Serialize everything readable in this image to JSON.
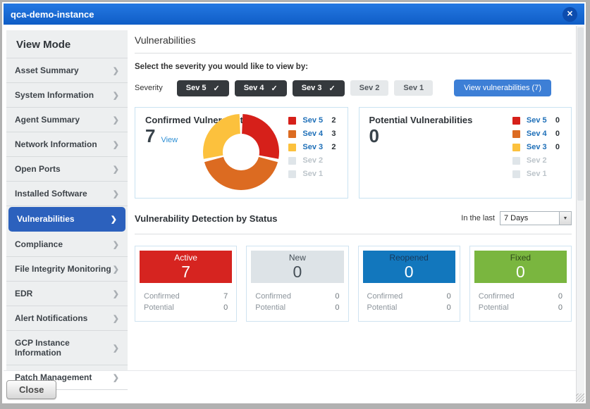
{
  "window": {
    "title": "qca-demo-instance",
    "close_icon": "✕"
  },
  "sidebar": {
    "header": "View Mode",
    "items": [
      {
        "label": "Asset Summary",
        "selected": false
      },
      {
        "label": "System Information",
        "selected": false
      },
      {
        "label": "Agent Summary",
        "selected": false
      },
      {
        "label": "Network Information",
        "selected": false
      },
      {
        "label": "Open Ports",
        "selected": false
      },
      {
        "label": "Installed Software",
        "selected": false
      },
      {
        "label": "Vulnerabilities",
        "selected": true
      },
      {
        "label": "Compliance",
        "selected": false
      },
      {
        "label": "File Integrity Monitoring",
        "selected": false
      },
      {
        "label": "EDR",
        "selected": false
      },
      {
        "label": "Alert Notifications",
        "selected": false
      },
      {
        "label": "GCP Instance Information",
        "selected": false
      },
      {
        "label": "Patch Management",
        "selected": false
      }
    ]
  },
  "main": {
    "heading": "Vulnerabilities",
    "select_text": "Select the severity you would like to view by:",
    "severity_label": "Severity",
    "severity_buttons": [
      {
        "label": "Sev 5",
        "checked": true
      },
      {
        "label": "Sev 4",
        "checked": true
      },
      {
        "label": "Sev 3",
        "checked": true
      },
      {
        "label": "Sev 2",
        "checked": false
      },
      {
        "label": "Sev 1",
        "checked": false
      }
    ],
    "check_glyph": "✓",
    "view_button": "View vulnerabilities (7)",
    "confirmed": {
      "title": "Confirmed Vulnerabilities",
      "count": "7",
      "view_link": "View",
      "donut": {
        "type": "donut",
        "values": [
          2,
          3,
          2
        ],
        "colors": [
          "#d6201a",
          "#dc6b21",
          "#fcc13d"
        ],
        "labels": [
          "Sev 5",
          "Sev 4",
          "Sev 3"
        ]
      },
      "legend": [
        {
          "label": "Sev 5",
          "count": "2",
          "color": "#d6201a",
          "muted": false
        },
        {
          "label": "Sev 4",
          "count": "3",
          "color": "#dc6b21",
          "muted": false
        },
        {
          "label": "Sev 3",
          "count": "2",
          "color": "#fcc13d",
          "muted": false
        },
        {
          "label": "Sev 2",
          "count": "",
          "color": "#dfe5e9",
          "muted": true
        },
        {
          "label": "Sev 1",
          "count": "",
          "color": "#dfe5e9",
          "muted": true
        }
      ]
    },
    "potential": {
      "title": "Potential Vulnerabilities",
      "count": "0",
      "legend": [
        {
          "label": "Sev 5",
          "count": "0",
          "color": "#d6201a",
          "muted": false
        },
        {
          "label": "Sev 4",
          "count": "0",
          "color": "#dc6b21",
          "muted": false
        },
        {
          "label": "Sev 3",
          "count": "0",
          "color": "#fcc13d",
          "muted": false
        },
        {
          "label": "Sev 2",
          "count": "",
          "color": "#dfe5e9",
          "muted": true
        },
        {
          "label": "Sev 1",
          "count": "",
          "color": "#dfe5e9",
          "muted": true
        }
      ]
    },
    "status_section": {
      "heading": "Vulnerability Detection by Status",
      "filter_label": "In the last",
      "filter_value": "7 Days",
      "row_labels": {
        "confirmed": "Confirmed",
        "potential": "Potential"
      },
      "cards": [
        {
          "label": "Active",
          "count": "7",
          "bg": "#d62420",
          "label_color": "#ffffff",
          "count_color": "#ffffff",
          "confirmed": "7",
          "potential": "0"
        },
        {
          "label": "New",
          "count": "0",
          "bg": "#dde3e7",
          "label_color": "#454f57",
          "count_color": "#454f57",
          "confirmed": "0",
          "potential": "0"
        },
        {
          "label": "Reopened",
          "count": "0",
          "bg": "#1277bd",
          "label_color": "#173a5c",
          "count_color": "#ffffff",
          "confirmed": "0",
          "potential": "0"
        },
        {
          "label": "Fixed",
          "count": "0",
          "bg": "#7ab63f",
          "label_color": "#2f4a1a",
          "count_color": "#ffffff",
          "confirmed": "0",
          "potential": "0"
        }
      ]
    }
  },
  "footer": {
    "close_label": "Close"
  }
}
